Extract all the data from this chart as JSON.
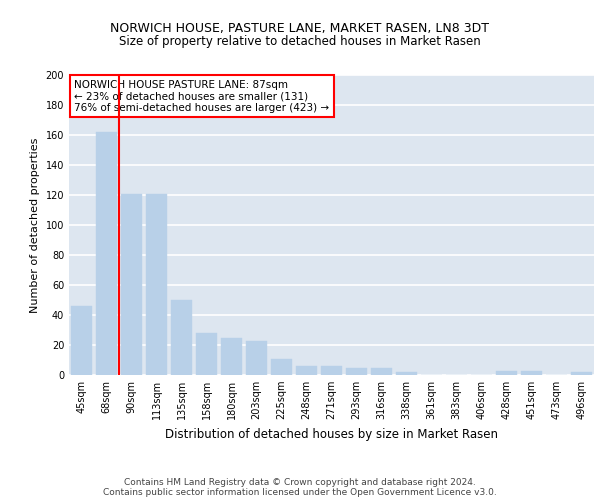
{
  "title": "NORWICH HOUSE, PASTURE LANE, MARKET RASEN, LN8 3DT",
  "subtitle": "Size of property relative to detached houses in Market Rasen",
  "xlabel": "Distribution of detached houses by size in Market Rasen",
  "ylabel": "Number of detached properties",
  "categories": [
    "45sqm",
    "68sqm",
    "90sqm",
    "113sqm",
    "135sqm",
    "158sqm",
    "180sqm",
    "203sqm",
    "225sqm",
    "248sqm",
    "271sqm",
    "293sqm",
    "316sqm",
    "338sqm",
    "361sqm",
    "383sqm",
    "406sqm",
    "428sqm",
    "451sqm",
    "473sqm",
    "496sqm"
  ],
  "values": [
    46,
    162,
    121,
    121,
    50,
    28,
    25,
    23,
    11,
    6,
    6,
    5,
    5,
    2,
    0,
    0,
    0,
    3,
    3,
    0,
    2
  ],
  "bar_color": "#b8d0e8",
  "bar_edge_color": "#b8d0e8",
  "vline_x": 1.5,
  "vline_color": "red",
  "annotation_text": "NORWICH HOUSE PASTURE LANE: 87sqm\n← 23% of detached houses are smaller (131)\n76% of semi-detached houses are larger (423) →",
  "annotation_box_color": "white",
  "annotation_box_edge_color": "red",
  "ylim": [
    0,
    200
  ],
  "yticks": [
    0,
    20,
    40,
    60,
    80,
    100,
    120,
    140,
    160,
    180,
    200
  ],
  "background_color": "#dde6f0",
  "grid_color": "white",
  "footer": "Contains HM Land Registry data © Crown copyright and database right 2024.\nContains public sector information licensed under the Open Government Licence v3.0.",
  "title_fontsize": 9,
  "subtitle_fontsize": 8.5,
  "ylabel_fontsize": 8,
  "xlabel_fontsize": 8.5,
  "tick_fontsize": 7,
  "annotation_fontsize": 7.5,
  "footer_fontsize": 6.5
}
